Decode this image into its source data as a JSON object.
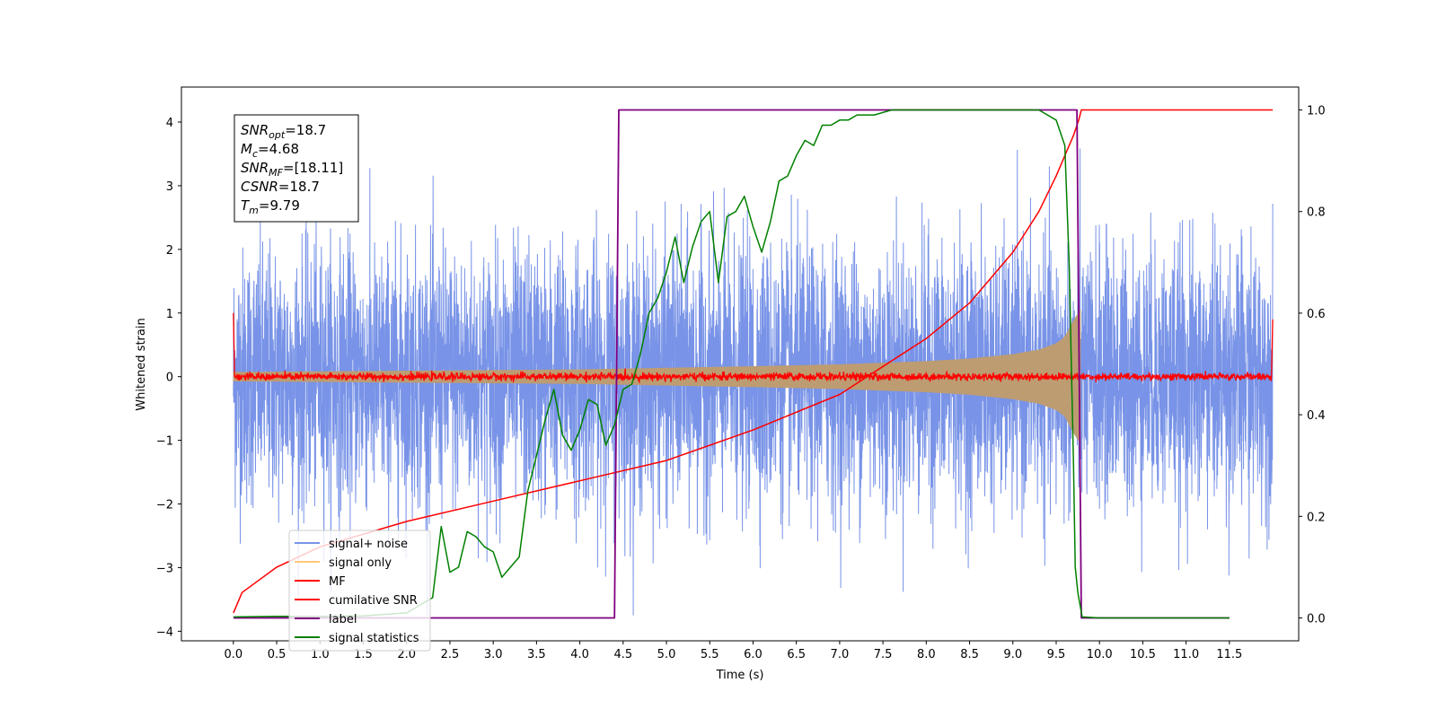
{
  "chart_data": {
    "type": "line",
    "xlabel": "Time (s)",
    "ylabel": "Whitened strain",
    "xlim": [
      -0.6,
      12.3
    ],
    "ylim": [
      -4.15,
      4.55
    ],
    "y2lim": [
      -0.045,
      1.045
    ],
    "x_ticks": [
      "0.0",
      "0.5",
      "1.0",
      "1.5",
      "2.0",
      "2.5",
      "3.0",
      "3.5",
      "4.0",
      "4.5",
      "5.0",
      "5.5",
      "6.0",
      "6.5",
      "7.0",
      "7.5",
      "8.0",
      "8.5",
      "9.0",
      "9.5",
      "10.0",
      "10.5",
      "11.0",
      "11.5"
    ],
    "y_ticks": [
      "4",
      "3",
      "2",
      "1",
      "0",
      "−1",
      "−2",
      "−3",
      "−4"
    ],
    "y2_ticks": [
      "1.0",
      "0.8",
      "0.6",
      "0.4",
      "0.2",
      "0.0"
    ],
    "grid": false,
    "legend_position": "lower-left",
    "annotation": [
      {
        "sym": "SNR",
        "sub": "opt",
        "val": "=18.7"
      },
      {
        "sym": "M",
        "sub": "c",
        "val": "=4.68"
      },
      {
        "sym": "SNR",
        "sub": "MF",
        "val": "=[18.11]"
      },
      {
        "sym": "CSNR",
        "sub": "",
        "val": "=18.7"
      },
      {
        "sym": "T",
        "sub": "m",
        "val": "=9.79"
      }
    ],
    "series": [
      {
        "name": "signal+ noise",
        "color": "#7893e7",
        "axis": "left",
        "kind": "noise",
        "envelope_1sigma": 1.0,
        "x_range": [
          0.0,
          12.0
        ]
      },
      {
        "name": "signal only",
        "color": "#ffc878",
        "axis": "left",
        "kind": "chirp",
        "envelope": {
          "x": [
            0.0,
            2.0,
            4.0,
            6.0,
            7.0,
            8.0,
            8.5,
            9.0,
            9.3,
            9.5,
            9.6,
            9.7,
            9.78
          ],
          "y": [
            0.07,
            0.09,
            0.11,
            0.16,
            0.19,
            0.24,
            0.28,
            0.35,
            0.42,
            0.52,
            0.62,
            0.88,
            1.05
          ]
        }
      },
      {
        "name": "MF",
        "color": "#ff0000",
        "axis": "left",
        "kind": "matched-filter",
        "noise_level": 0.03,
        "edges": {
          "start": 1.0,
          "end": 0.9
        },
        "x_range": [
          0.0,
          12.0
        ]
      },
      {
        "name": "cumilative SNR",
        "color": "#ff0000",
        "axis": "right",
        "x": [
          0.0,
          0.1,
          0.5,
          1.0,
          2.0,
          3.0,
          4.0,
          5.0,
          6.0,
          7.0,
          8.0,
          8.5,
          9.0,
          9.3,
          9.5,
          9.6,
          9.7,
          9.76,
          9.79,
          12.0
        ],
        "y": [
          0.01,
          0.05,
          0.1,
          0.14,
          0.19,
          0.23,
          0.27,
          0.31,
          0.37,
          0.44,
          0.55,
          0.62,
          0.72,
          0.8,
          0.87,
          0.91,
          0.95,
          0.98,
          1.0,
          1.0
        ]
      },
      {
        "name": "label",
        "color": "#800080",
        "axis": "right",
        "x": [
          0.0,
          4.4,
          4.45,
          9.74,
          9.79,
          11.5
        ],
        "y": [
          0.0,
          0.0,
          1.0,
          1.0,
          0.0,
          0.0
        ]
      },
      {
        "name": "signal statistics",
        "color": "#008000",
        "axis": "right",
        "x": [
          0.0,
          0.5,
          1.0,
          1.5,
          2.0,
          2.3,
          2.4,
          2.5,
          2.6,
          2.7,
          2.8,
          2.9,
          3.0,
          3.1,
          3.2,
          3.3,
          3.4,
          3.5,
          3.6,
          3.7,
          3.8,
          3.9,
          4.0,
          4.1,
          4.2,
          4.3,
          4.4,
          4.5,
          4.6,
          4.7,
          4.8,
          4.9,
          5.0,
          5.1,
          5.2,
          5.3,
          5.4,
          5.5,
          5.6,
          5.7,
          5.8,
          5.9,
          6.0,
          6.1,
          6.2,
          6.3,
          6.4,
          6.5,
          6.6,
          6.7,
          6.8,
          6.9,
          7.0,
          7.1,
          7.2,
          7.3,
          7.4,
          7.6,
          8.0,
          8.5,
          9.0,
          9.3,
          9.5,
          9.6,
          9.65,
          9.7,
          9.72,
          9.75,
          9.8,
          10.0,
          11.0,
          11.5
        ],
        "y": [
          0.002,
          0.003,
          0.003,
          0.004,
          0.01,
          0.04,
          0.18,
          0.09,
          0.1,
          0.17,
          0.16,
          0.14,
          0.13,
          0.08,
          0.1,
          0.12,
          0.25,
          0.32,
          0.39,
          0.45,
          0.36,
          0.33,
          0.37,
          0.43,
          0.42,
          0.34,
          0.38,
          0.45,
          0.46,
          0.52,
          0.6,
          0.63,
          0.68,
          0.75,
          0.66,
          0.73,
          0.78,
          0.8,
          0.66,
          0.79,
          0.8,
          0.83,
          0.77,
          0.72,
          0.78,
          0.86,
          0.87,
          0.91,
          0.94,
          0.93,
          0.97,
          0.97,
          0.98,
          0.98,
          0.99,
          0.99,
          0.99,
          1.0,
          1.0,
          1.0,
          1.0,
          1.0,
          0.98,
          0.93,
          0.7,
          0.3,
          0.1,
          0.05,
          0.002,
          0.0,
          0.0,
          0.0
        ]
      }
    ]
  }
}
